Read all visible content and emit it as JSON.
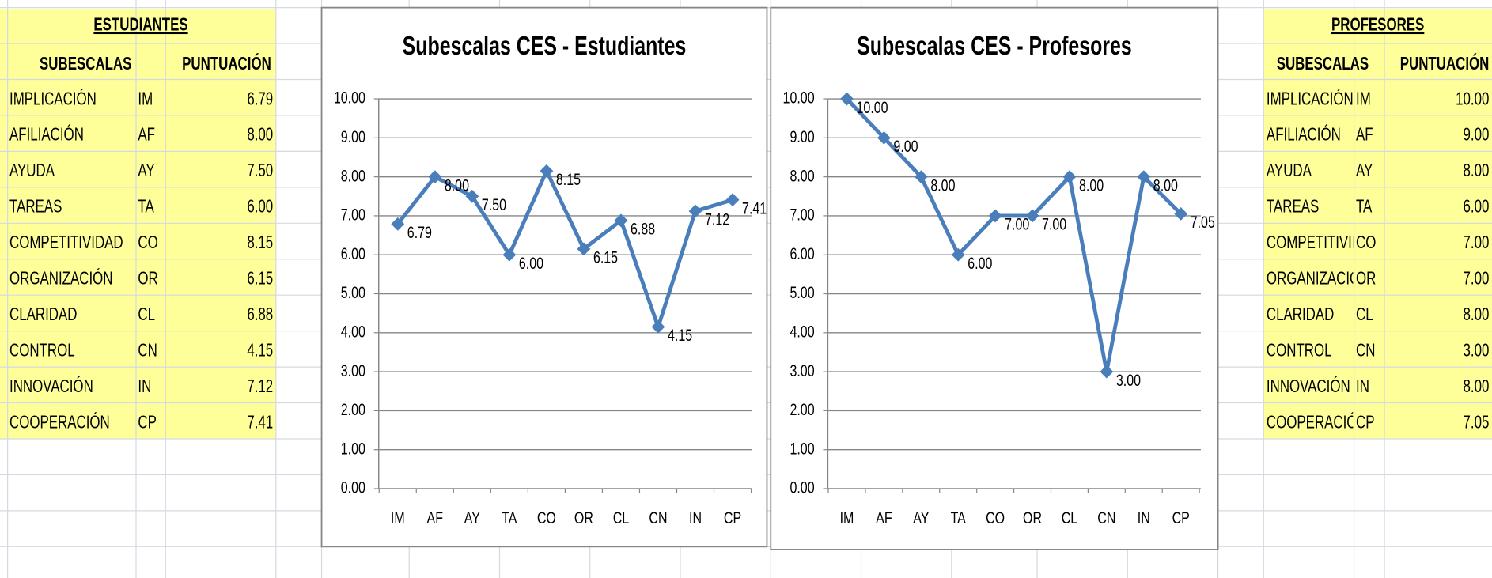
{
  "tables": [
    {
      "title": "ESTUDIANTES",
      "headers": [
        "SUBESCALAS",
        "PUNTUACIÓN"
      ],
      "rows": [
        [
          "IMPLICACIÓN",
          "IM",
          "6.79"
        ],
        [
          "AFILIACIÓN",
          "AF",
          "8.00"
        ],
        [
          "AYUDA",
          "AY",
          "7.50"
        ],
        [
          "TAREAS",
          "TA",
          "6.00"
        ],
        [
          "COMPETITIVIDAD",
          "CO",
          "8.15"
        ],
        [
          "ORGANIZACIÓN",
          "OR",
          "6.15"
        ],
        [
          "CLARIDAD",
          "CL",
          "6.88"
        ],
        [
          "CONTROL",
          "CN",
          "4.15"
        ],
        [
          "INNOVACIÓN",
          "IN",
          "7.12"
        ],
        [
          "COOPERACIÓN",
          "CP",
          "7.41"
        ]
      ]
    },
    {
      "title": "PROFESORES",
      "headers": [
        "SUBESCALAS",
        "PUNTUACIÓN"
      ],
      "rows": [
        [
          "IMPLICACIÓN",
          "IM",
          "10.00"
        ],
        [
          "AFILIACIÓN",
          "AF",
          "9.00"
        ],
        [
          "AYUDA",
          "AY",
          "8.00"
        ],
        [
          "TAREAS",
          "TA",
          "6.00"
        ],
        [
          "COMPETITIVIDAD",
          "CO",
          "7.00"
        ],
        [
          "ORGANIZACIÓN",
          "OR",
          "7.00"
        ],
        [
          "CLARIDAD",
          "CL",
          "8.00"
        ],
        [
          "CONTROL",
          "CN",
          "3.00"
        ],
        [
          "INNOVACIÓN",
          "IN",
          "8.00"
        ],
        [
          "COOPERACIÓN",
          "CP",
          "7.05"
        ]
      ]
    }
  ],
  "chart_data": [
    {
      "type": "line",
      "title": "Subescalas CES - Estudiantes",
      "categories": [
        "IM",
        "AF",
        "AY",
        "TA",
        "CO",
        "OR",
        "CL",
        "CN",
        "IN",
        "CP"
      ],
      "values": [
        6.79,
        8,
        7.5,
        6,
        8.15,
        6.15,
        6.88,
        4.15,
        7.12,
        7.41
      ],
      "value_labels": [
        "6.79",
        "8.00",
        "7.50",
        "6.00",
        "8.15",
        "6.15",
        "6.88",
        "4.15",
        "7.12",
        "7.41"
      ],
      "color": "#4a7ebb",
      "ylim": [
        0,
        10
      ],
      "yticks": [
        {
          "value": 0,
          "label": "0.00"
        },
        {
          "value": 1,
          "label": "1.00"
        },
        {
          "value": 2,
          "label": "2.00"
        },
        {
          "value": 3,
          "label": "3.00"
        },
        {
          "value": 4,
          "label": "4.00"
        },
        {
          "value": 5,
          "label": "5.00"
        },
        {
          "value": 6,
          "label": "6.00"
        },
        {
          "value": 7,
          "label": "7.00"
        },
        {
          "value": 8,
          "label": "8.00"
        },
        {
          "value": 9,
          "label": "9.00"
        },
        {
          "value": 10,
          "label": "10.00"
        }
      ],
      "grid": true
    },
    {
      "type": "line",
      "title": "Subescalas CES - Profesores",
      "categories": [
        "IM",
        "AF",
        "AY",
        "TA",
        "CO",
        "OR",
        "CL",
        "CN",
        "IN",
        "CP"
      ],
      "values": [
        10,
        9,
        8,
        6,
        7,
        7,
        8,
        3,
        8,
        7.05
      ],
      "value_labels": [
        "10.00",
        "9.00",
        "8.00",
        "6.00",
        "7.00",
        "7.00",
        "8.00",
        "3.00",
        "8.00",
        "7.05"
      ],
      "color": "#4a7ebb",
      "ylim": [
        0,
        10
      ],
      "yticks": [
        {
          "value": 0,
          "label": "0.00"
        },
        {
          "value": 1,
          "label": "1.00"
        },
        {
          "value": 2,
          "label": "2.00"
        },
        {
          "value": 3,
          "label": "3.00"
        },
        {
          "value": 4,
          "label": "4.00"
        },
        {
          "value": 5,
          "label": "5.00"
        },
        {
          "value": 6,
          "label": "6.00"
        },
        {
          "value": 7,
          "label": "7.00"
        },
        {
          "value": 8,
          "label": "8.00"
        },
        {
          "value": 9,
          "label": "9.00"
        },
        {
          "value": 10,
          "label": "10.00"
        }
      ],
      "grid": true
    }
  ]
}
